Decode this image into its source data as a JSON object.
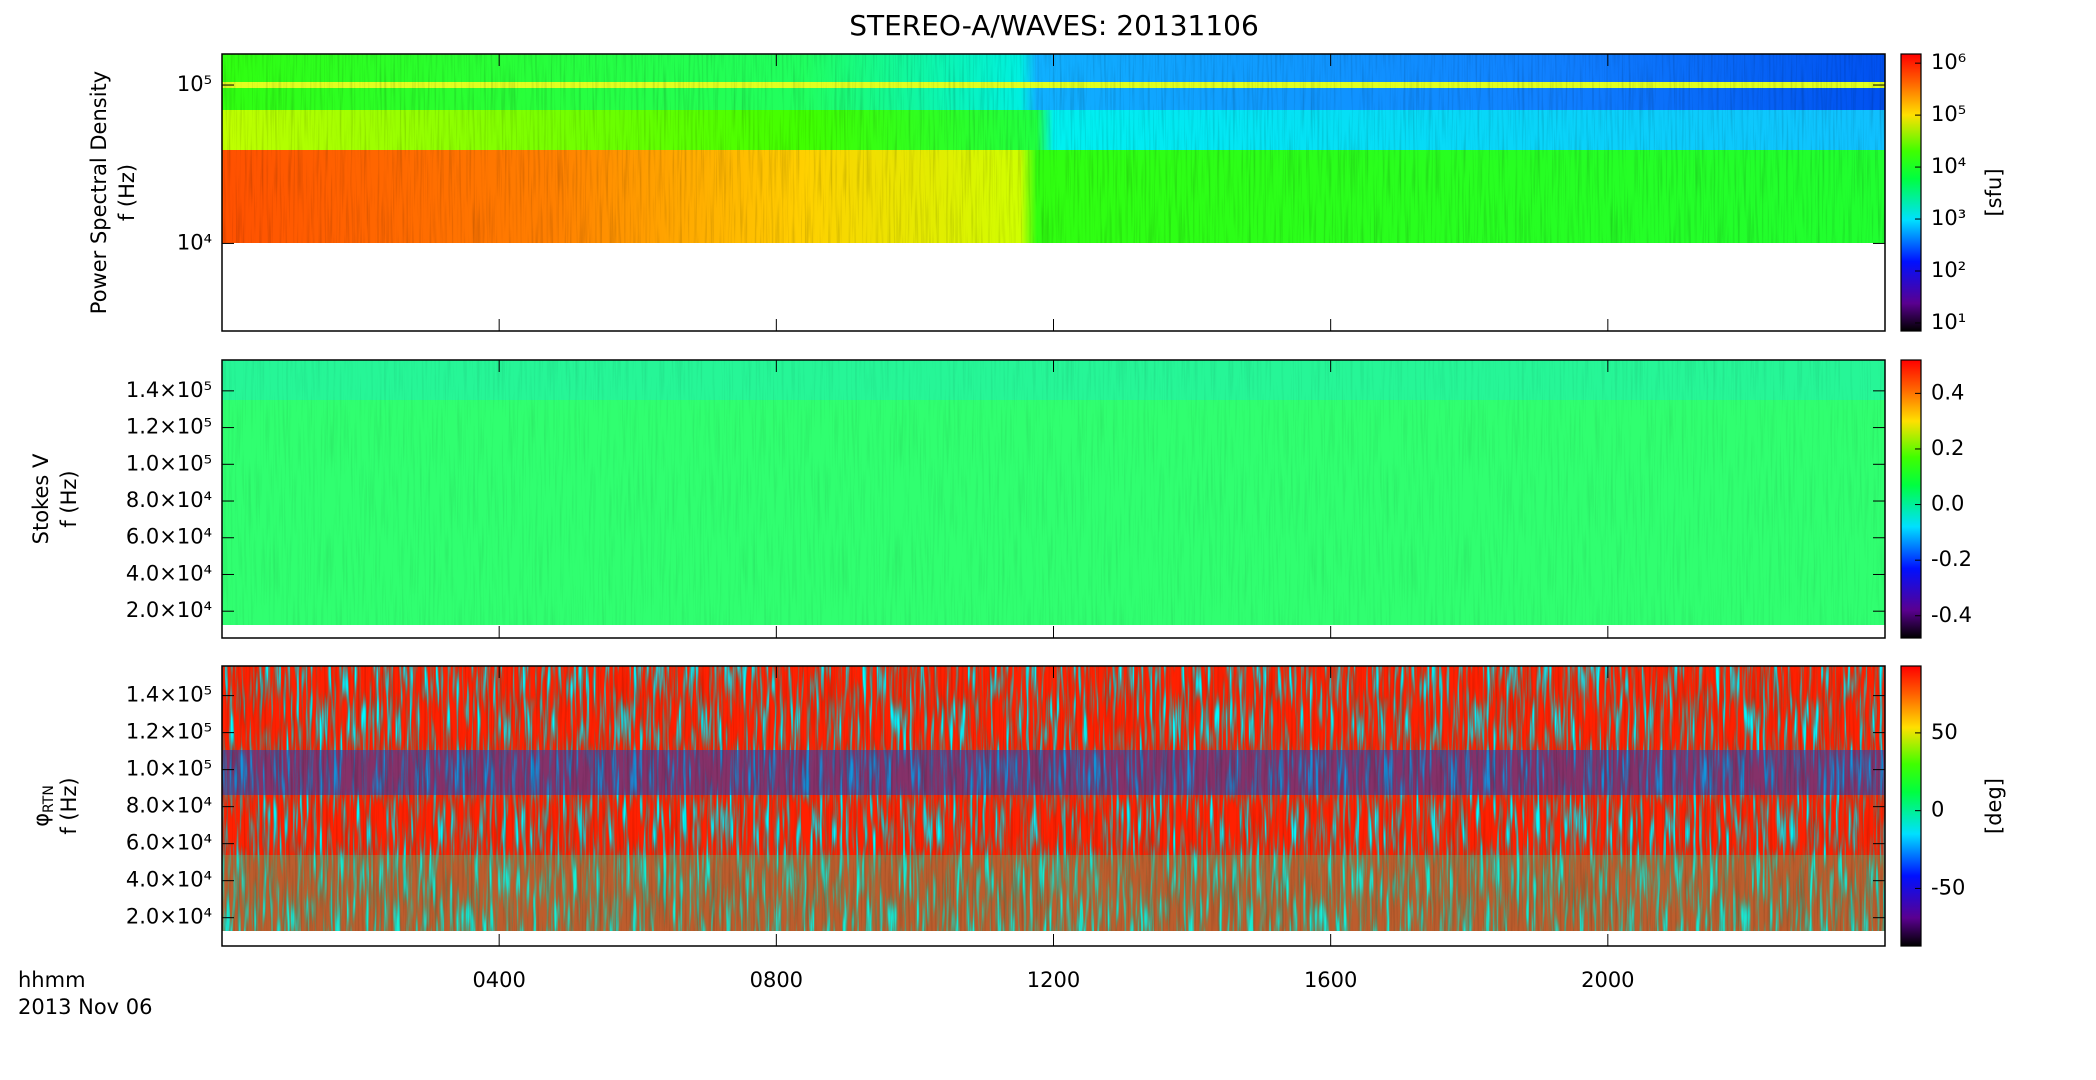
{
  "title": "STEREO-A/WAVES: 20131106",
  "x_axis": {
    "xlim": [
      0,
      24
    ],
    "xticks": [
      {
        "value": 4,
        "label": "0400"
      },
      {
        "value": 8,
        "label": "0800"
      },
      {
        "value": 12,
        "label": "1200"
      },
      {
        "value": 16,
        "label": "1600"
      },
      {
        "value": 20,
        "label": "2000"
      }
    ],
    "label": "hhmm",
    "date": "2013 Nov 06"
  },
  "chart_data": [
    {
      "type": "spectrogram",
      "ylabel": "Power Spectral Density",
      "ylabel2": "f (Hz)",
      "yscale": "log",
      "ylim": [
        2800,
        157000
      ],
      "yticks": [
        {
          "value": 10000,
          "label": "10⁴"
        },
        {
          "value": 100000,
          "label": "10⁵"
        }
      ],
      "colorbar": {
        "scale": "log",
        "lim": [
          7,
          1500000
        ],
        "ticks": [
          {
            "value": 10,
            "label": "10¹"
          },
          {
            "value": 100,
            "label": "10²"
          },
          {
            "value": 1000,
            "label": "10³"
          },
          {
            "value": 10000,
            "label": "10⁴"
          },
          {
            "value": 100000,
            "label": "10⁵"
          },
          {
            "value": 1000000,
            "label": "10⁶"
          }
        ],
        "label": "[sfu]"
      }
    },
    {
      "type": "spectrogram",
      "ylabel": "Stokes V",
      "ylabel2": "f (Hz)",
      "yscale": "linear",
      "ylim": [
        5400,
        156800
      ],
      "yticks": [
        {
          "value": 20000,
          "label": "2.0×10⁴"
        },
        {
          "value": 40000,
          "label": "4.0×10⁴"
        },
        {
          "value": 60000,
          "label": "6.0×10⁴"
        },
        {
          "value": 80000,
          "label": "8.0×10⁴"
        },
        {
          "value": 100000,
          "label": "1.0×10⁵"
        },
        {
          "value": 120000,
          "label": "1.2×10⁵"
        },
        {
          "value": 140000,
          "label": "1.4×10⁵"
        }
      ],
      "colorbar": {
        "scale": "linear",
        "lim": [
          -0.48,
          0.52
        ],
        "ticks": [
          0.4,
          0.2,
          {
            "value": 0,
            "label": "0.0"
          },
          -0.2,
          -0.4
        ]
      }
    },
    {
      "type": "spectrogram",
      "ylabel_symbol": "φ",
      "ylabel_subscript": "RTN",
      "ylabel2": "f (Hz)",
      "yscale": "linear",
      "ylim": [
        4700,
        156000
      ],
      "yticks": [
        {
          "value": 20000,
          "label": "2.0×10⁴"
        },
        {
          "value": 40000,
          "label": "4.0×10⁴"
        },
        {
          "value": 60000,
          "label": "6.0×10⁴"
        },
        {
          "value": 80000,
          "label": "8.0×10⁴"
        },
        {
          "value": 100000,
          "label": "1.0×10⁵"
        },
        {
          "value": 120000,
          "label": "1.2×10⁵"
        },
        {
          "value": 140000,
          "label": "1.4×10⁵"
        }
      ],
      "colorbar": {
        "scale": "linear",
        "lim": [
          -87,
          93
        ],
        "ticks": [
          50,
          0,
          -50
        ],
        "label": "[deg]"
      }
    }
  ]
}
